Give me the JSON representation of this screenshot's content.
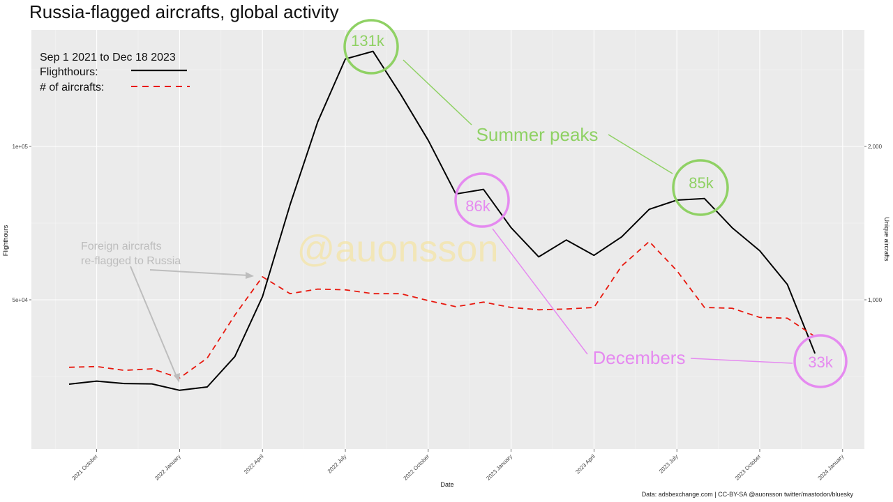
{
  "title": "Russia-flagged aircrafts, global activity",
  "caption": "Data: adsbexchange.com | CC-BY-SA @auonsson twitter/mastodon/bluesky",
  "watermark": "@auonsson",
  "legend": {
    "period": "Sep 1 2021 to Dec 18 2023",
    "flighthours_label": "Flighthours:",
    "aircrafts_label": "# of aircrafts:",
    "flighthours_color": "#000000",
    "aircrafts_color": "#e8180e"
  },
  "annotations": {
    "summer_peaks": "Summer peaks",
    "decembers": "Decembers",
    "foreign_line1": "Foreign aircrafts",
    "foreign_line2": "re-flagged to Russia",
    "peak_2022": "131k",
    "peak_2023": "85k",
    "dec_2022": "86k",
    "dec_2023": "33k",
    "green_color": "#8fd164",
    "violet_color": "#e58af0",
    "grey_color": "#bdbdbd"
  },
  "chart_data": {
    "type": "line",
    "xlabel": "Date",
    "ylabel": "Flighthours",
    "y2label": "Unique aircrafts",
    "x_ticks": [
      "2021 October",
      "2022 January",
      "2022 April",
      "2022 July",
      "2022 October",
      "2023 January",
      "2023 April",
      "2023 July",
      "2023 October",
      "2024 January"
    ],
    "y_ticks": [
      "5e+04",
      "1e+05"
    ],
    "y2_ticks": [
      "1,000",
      "2,000"
    ],
    "x": [
      "2021-09",
      "2021-10",
      "2021-11",
      "2021-12",
      "2022-01",
      "2022-02",
      "2022-03",
      "2022-04",
      "2022-05",
      "2022-06",
      "2022-07",
      "2022-08",
      "2022-09",
      "2022-10",
      "2022-11",
      "2022-12",
      "2023-01",
      "2023-02",
      "2023-03",
      "2023-04",
      "2023-05",
      "2023-06",
      "2023-07",
      "2023-08",
      "2023-09",
      "2023-10",
      "2023-11",
      "2023-12"
    ],
    "series": [
      {
        "name": "Flighthours",
        "axis": "left",
        "values": [
          22500,
          23500,
          22700,
          22600,
          20500,
          21600,
          31500,
          51000,
          81000,
          108000,
          128500,
          131000,
          117000,
          102000,
          84500,
          86000,
          73500,
          64000,
          69500,
          64500,
          70500,
          79500,
          82500,
          83000,
          73500,
          66000,
          55000,
          32500
        ]
      },
      {
        "name": "# of aircrafts",
        "axis": "right",
        "values": [
          560,
          565,
          540,
          550,
          490,
          620,
          900,
          1150,
          1040,
          1070,
          1065,
          1040,
          1040,
          995,
          955,
          985,
          950,
          935,
          940,
          950,
          1220,
          1380,
          1190,
          950,
          945,
          885,
          880,
          760
        ]
      }
    ],
    "ylim": [
      0,
      133000
    ],
    "y2lim": [
      0,
      2660
    ],
    "grid": true,
    "legend_position": "top-left"
  }
}
